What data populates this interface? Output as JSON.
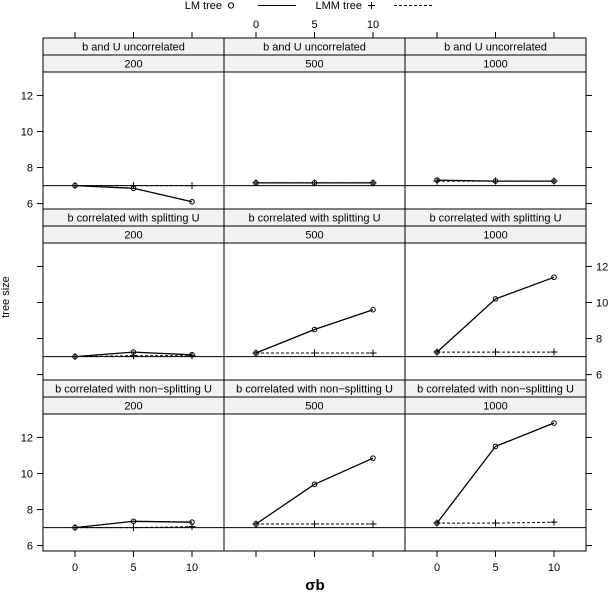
{
  "chart_data": {
    "type": "line",
    "legend": {
      "placement": "top",
      "entries": [
        {
          "name": "LM tree",
          "marker": "circle",
          "line": "solid"
        },
        {
          "name": "LMM tree",
          "marker": "plus",
          "line": "dashed"
        }
      ]
    },
    "xlabel": "σb",
    "ylabel": "tree size",
    "x": [
      0,
      5,
      10
    ],
    "x_ticks": [
      "0",
      "5",
      "10"
    ],
    "y_ticks": [
      "6",
      "8",
      "10",
      "12"
    ],
    "ylim": [
      5.7,
      13.3
    ],
    "reference_line": 7,
    "panels": [
      {
        "strip1": "b and U uncorrelated",
        "strip2": "200",
        "series": [
          {
            "name": "LM tree",
            "values": [
              7.0,
              6.85,
              6.1
            ]
          },
          {
            "name": "LMM tree",
            "values": [
              7.0,
              7.0,
              7.0
            ]
          }
        ]
      },
      {
        "strip1": "b and U uncorrelated",
        "strip2": "500",
        "series": [
          {
            "name": "LM tree",
            "values": [
              7.15,
              7.15,
              7.15
            ]
          },
          {
            "name": "LMM tree",
            "values": [
              7.15,
              7.15,
              7.15
            ]
          }
        ]
      },
      {
        "strip1": "b and U uncorrelated",
        "strip2": "1000",
        "series": [
          {
            "name": "LM tree",
            "values": [
              7.3,
              7.25,
              7.25
            ]
          },
          {
            "name": "LMM tree",
            "values": [
              7.25,
              7.25,
              7.25
            ]
          }
        ]
      },
      {
        "strip1": "b correlated with splitting U",
        "strip2": "200",
        "series": [
          {
            "name": "LM tree",
            "values": [
              7.0,
              7.25,
              7.1
            ]
          },
          {
            "name": "LMM tree",
            "values": [
              7.0,
              7.05,
              7.05
            ]
          }
        ]
      },
      {
        "strip1": "b correlated with splitting U",
        "strip2": "500",
        "series": [
          {
            "name": "LM tree",
            "values": [
              7.2,
              8.5,
              9.6
            ]
          },
          {
            "name": "LMM tree",
            "values": [
              7.2,
              7.2,
              7.2
            ]
          }
        ]
      },
      {
        "strip1": "b correlated with splitting U",
        "strip2": "1000",
        "series": [
          {
            "name": "LM tree",
            "values": [
              7.25,
              10.2,
              11.4
            ]
          },
          {
            "name": "LMM tree",
            "values": [
              7.25,
              7.25,
              7.25
            ]
          }
        ]
      },
      {
        "strip1": "b correlated with non−splitting U",
        "strip2": "200",
        "series": [
          {
            "name": "LM tree",
            "values": [
              7.0,
              7.35,
              7.3
            ]
          },
          {
            "name": "LMM tree",
            "values": [
              7.0,
              7.0,
              7.05
            ]
          }
        ]
      },
      {
        "strip1": "b correlated with non−splitting U",
        "strip2": "500",
        "series": [
          {
            "name": "LM tree",
            "values": [
              7.2,
              9.4,
              10.85
            ]
          },
          {
            "name": "LMM tree",
            "values": [
              7.2,
              7.2,
              7.2
            ]
          }
        ]
      },
      {
        "strip1": "b correlated with non−splitting U",
        "strip2": "1000",
        "series": [
          {
            "name": "LM tree",
            "values": [
              7.25,
              11.5,
              12.8
            ]
          },
          {
            "name": "LMM tree",
            "values": [
              7.25,
              7.25,
              7.3
            ]
          }
        ]
      }
    ]
  }
}
